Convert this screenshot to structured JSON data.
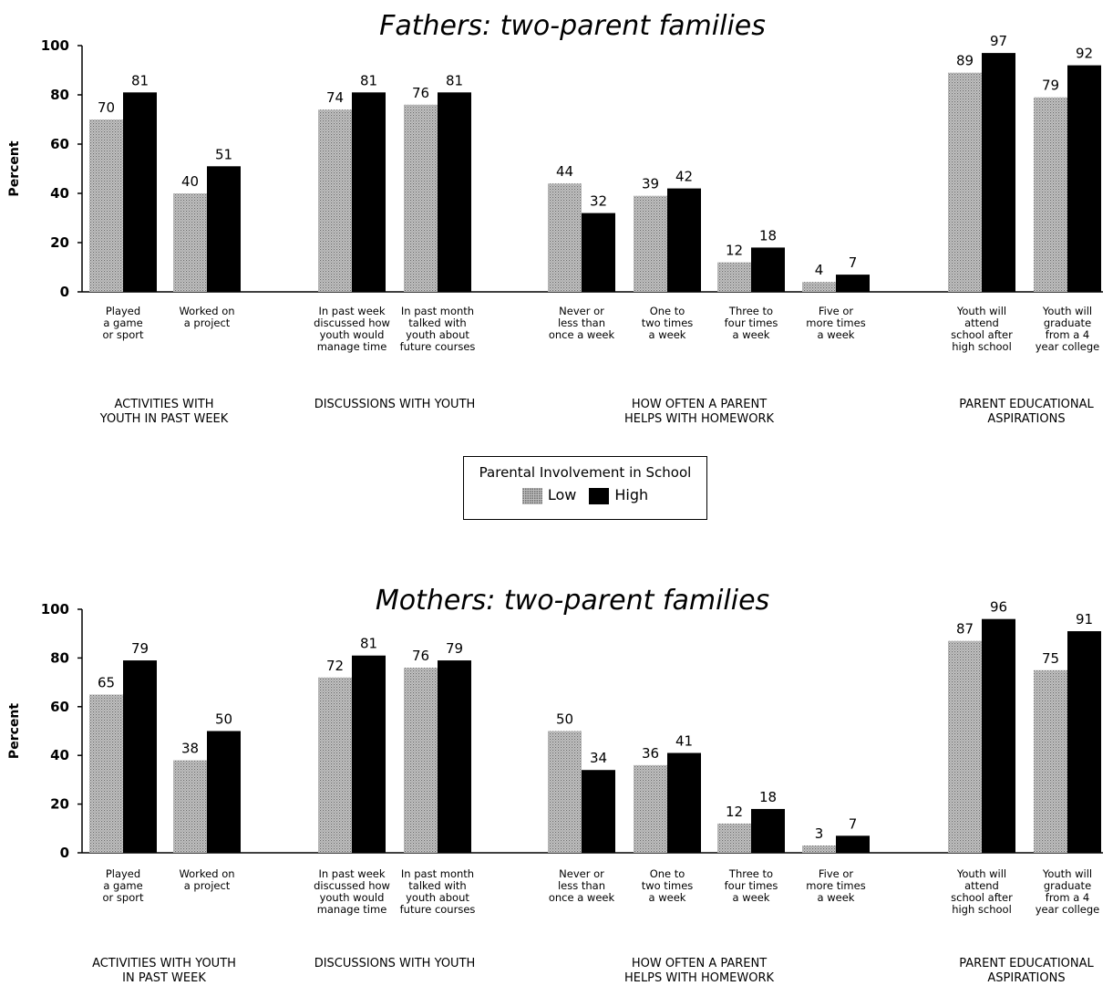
{
  "legend": {
    "title": "Parental Involvement in School",
    "low_label": "Low",
    "high_label": "High"
  },
  "colors": {
    "low": "#bdbdbd",
    "high": "#000000"
  },
  "chart_data": [
    {
      "type": "bar",
      "title": "Fathers: two-parent families",
      "ylabel": "Percent",
      "ylim": [
        0,
        100
      ],
      "yticks": [
        0,
        20,
        40,
        60,
        80,
        100
      ],
      "categories": [
        "Played a game or sport",
        "Worked on a project",
        "In past week discussed how youth would manage time",
        "In past month talked with youth about future courses",
        "Never or less than once a week",
        "One to two times a week",
        "Three to four times a week",
        "Five or more times a week",
        "Youth will attend school after high school",
        "Youth will graduate from a 4 year college"
      ],
      "category_lines": [
        [
          "Played",
          "a game",
          "or sport"
        ],
        [
          "Worked on",
          "a project"
        ],
        [
          "In past week",
          "discussed how",
          "youth would",
          "manage time"
        ],
        [
          "In past month",
          "talked with",
          "youth about",
          "future courses"
        ],
        [
          "Never or",
          "less than",
          "once a week"
        ],
        [
          "One to",
          "two times",
          "a week"
        ],
        [
          "Three to",
          "four times",
          "a week"
        ],
        [
          "Five or",
          "more times",
          "a week"
        ],
        [
          "Youth will",
          "attend",
          "school after",
          "high school"
        ],
        [
          "Youth will",
          "graduate",
          "from a 4",
          "year college"
        ]
      ],
      "groups": [
        {
          "lines": [
            "ACTIVITIES WITH",
            "YOUTH IN PAST WEEK"
          ]
        },
        {
          "lines": [
            "DISCUSSIONS WITH YOUTH"
          ]
        },
        {
          "lines": [
            "HOW OFTEN A PARENT",
            "HELPS WITH HOMEWORK"
          ]
        },
        {
          "lines": [
            "PARENT EDUCATIONAL",
            "ASPIRATIONS"
          ]
        }
      ],
      "series": [
        {
          "name": "Low",
          "values": [
            70,
            40,
            74,
            76,
            44,
            39,
            12,
            4,
            89,
            79
          ]
        },
        {
          "name": "High",
          "values": [
            81,
            51,
            81,
            81,
            32,
            42,
            18,
            7,
            97,
            92
          ]
        }
      ]
    },
    {
      "type": "bar",
      "title": "Mothers: two-parent families",
      "ylabel": "Percent",
      "ylim": [
        0,
        100
      ],
      "yticks": [
        0,
        20,
        40,
        60,
        80,
        100
      ],
      "categories": [
        "Played a game or sport",
        "Worked on a project",
        "In past week discussed how youth would manage time",
        "In past month talked with youth about future courses",
        "Never or less than once a week",
        "One to two times a week",
        "Three to four times a week",
        "Five or more times a week",
        "Youth will attend school after high school",
        "Youth will graduate from a 4 year college"
      ],
      "category_lines": [
        [
          "Played",
          "a game",
          "or sport"
        ],
        [
          "Worked on",
          "a project"
        ],
        [
          "In past week",
          "discussed how",
          "youth would",
          "manage time"
        ],
        [
          "In past month",
          "talked with",
          "youth about",
          "future courses"
        ],
        [
          "Never or",
          "less than",
          "once a week"
        ],
        [
          "One to",
          "two times",
          "a week"
        ],
        [
          "Three to",
          "four times",
          "a week"
        ],
        [
          "Five or",
          "more times",
          "a week"
        ],
        [
          "Youth will",
          "attend",
          "school after",
          "high school"
        ],
        [
          "Youth will",
          "graduate",
          "from a 4",
          "year college"
        ]
      ],
      "groups": [
        {
          "lines": [
            "ACTIVITIES WITH YOUTH",
            "IN PAST WEEK"
          ]
        },
        {
          "lines": [
            "DISCUSSIONS WITH YOUTH"
          ]
        },
        {
          "lines": [
            "HOW OFTEN A PARENT",
            "HELPS WITH HOMEWORK"
          ]
        },
        {
          "lines": [
            "PARENT EDUCATIONAL",
            "ASPIRATIONS"
          ]
        }
      ],
      "series": [
        {
          "name": "Low",
          "values": [
            65,
            38,
            72,
            76,
            50,
            36,
            12,
            3,
            87,
            75
          ]
        },
        {
          "name": "High",
          "values": [
            79,
            50,
            81,
            79,
            34,
            41,
            18,
            7,
            96,
            91
          ]
        }
      ]
    }
  ]
}
